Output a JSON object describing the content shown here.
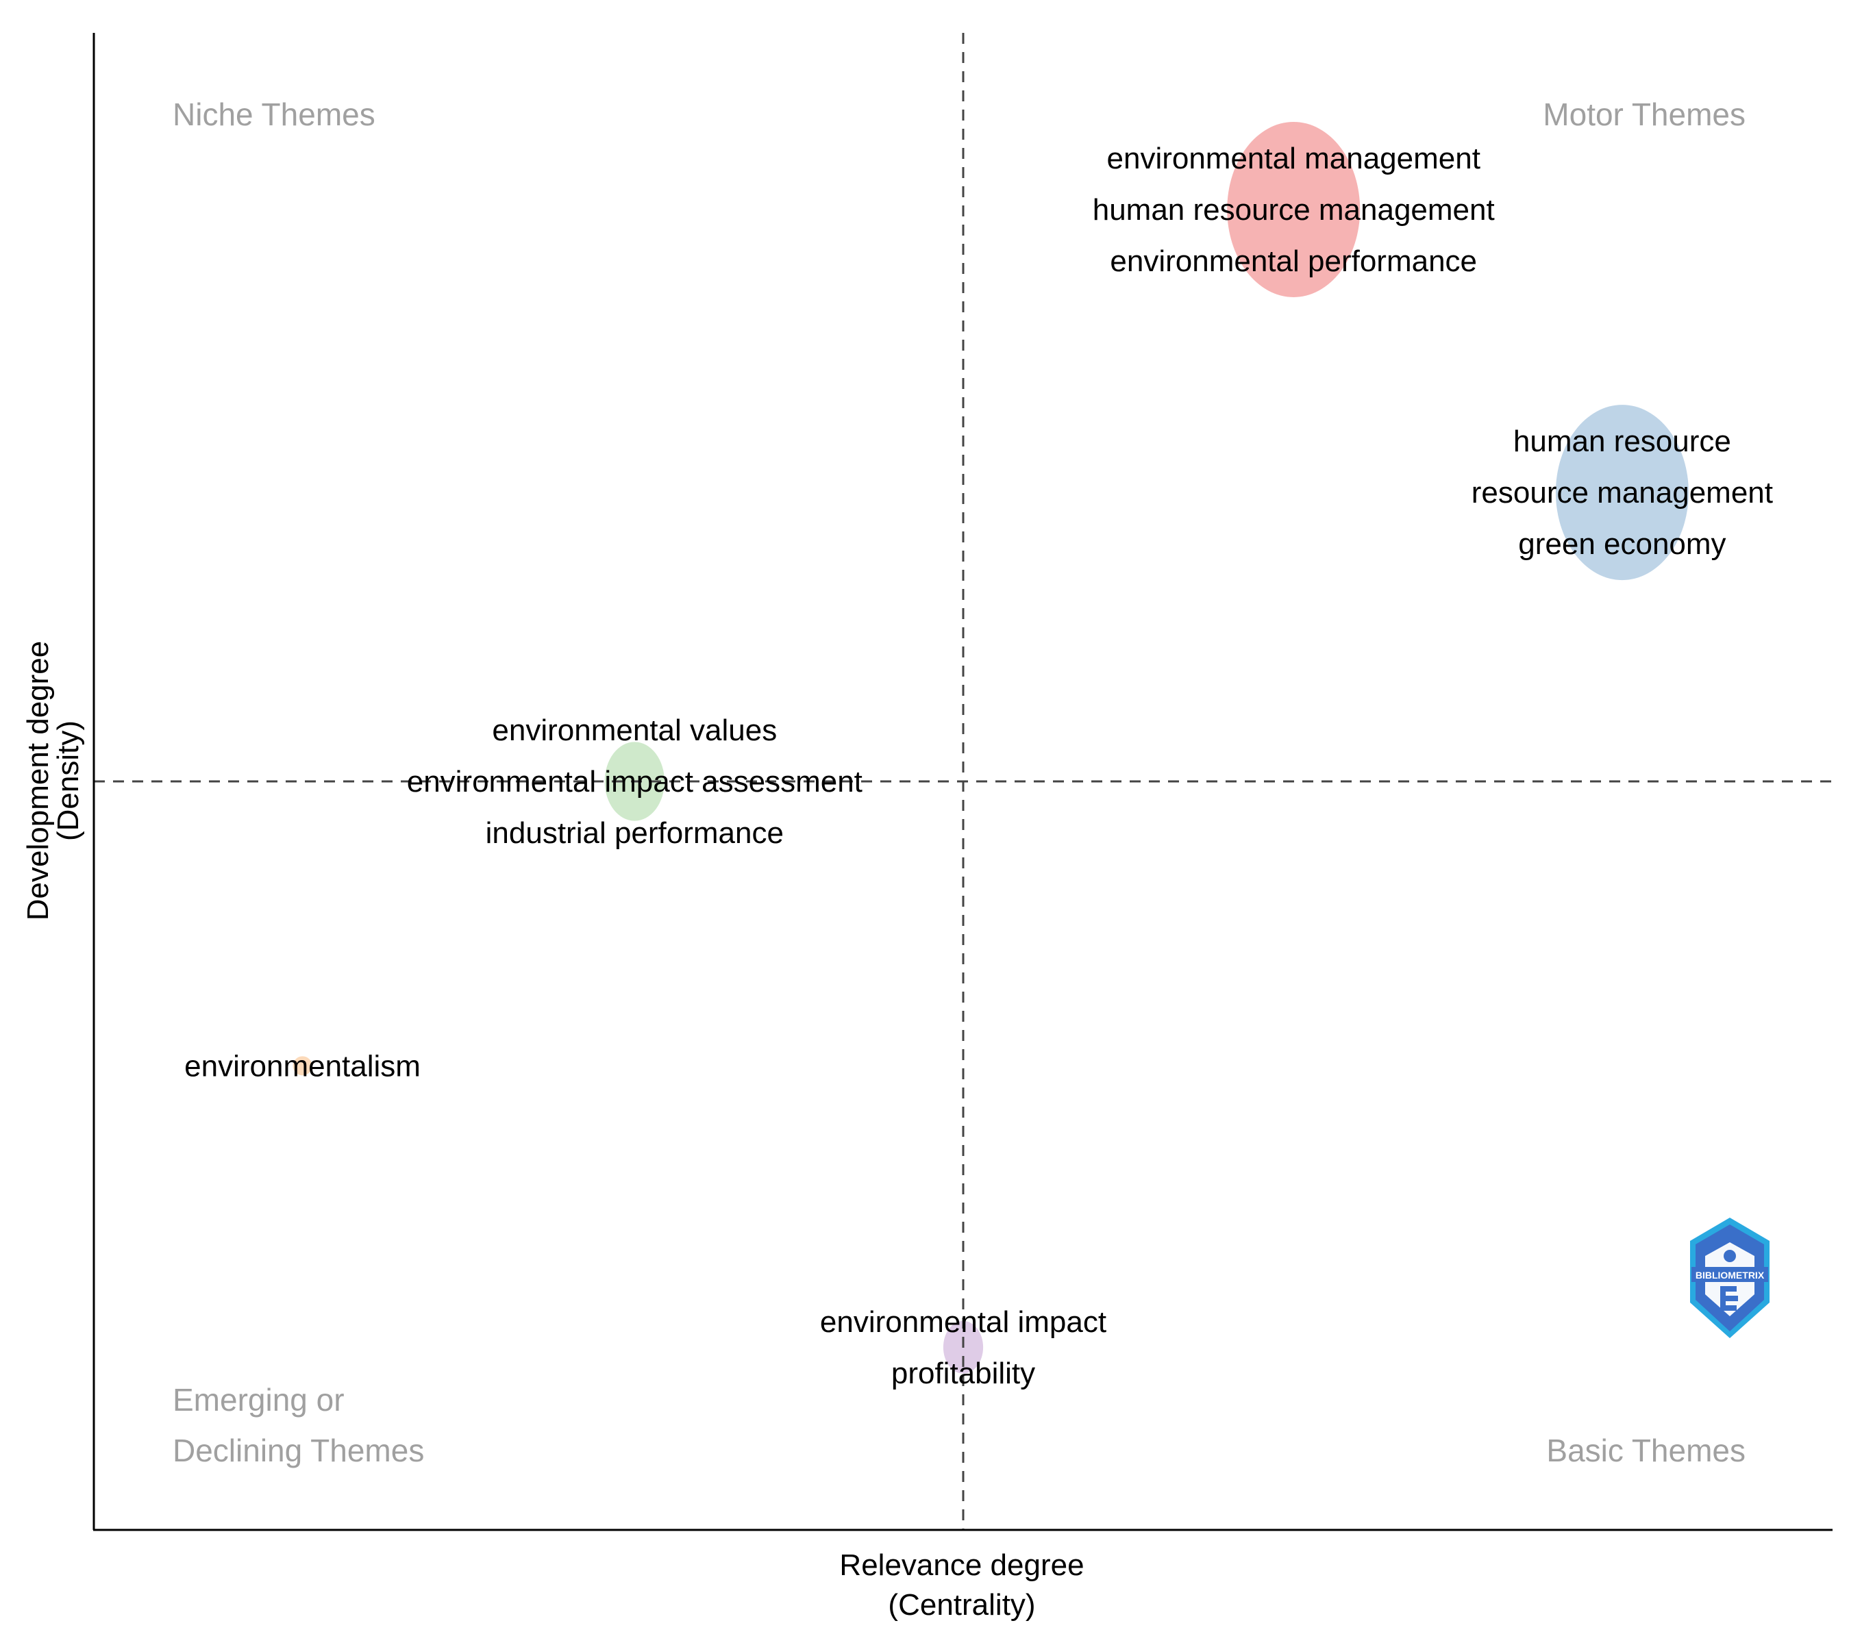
{
  "chart_data": {
    "type": "scatter",
    "title": "",
    "xlabel": [
      "Relevance degree",
      "(Centrality)"
    ],
    "ylabel": [
      "Development degree",
      "(Density)"
    ],
    "xlim": [
      0,
      1
    ],
    "ylim": [
      0,
      1
    ],
    "reference_x": 0.5,
    "reference_y": 0.5,
    "grid": false,
    "quadrant_labels": {
      "top_left": [
        "Niche Themes"
      ],
      "top_right": [
        "Motor Themes"
      ],
      "bottom_left": [
        "Emerging or",
        "Declining Themes"
      ],
      "bottom_right": [
        "Basic Themes"
      ]
    },
    "clusters": [
      {
        "labels": [
          "environmental management",
          "human resource management",
          "environmental performance"
        ],
        "x": 0.69,
        "y": 0.882,
        "size": 1.0,
        "color": "#F4A6A6"
      },
      {
        "labels": [
          "human resource",
          "resource management",
          "green economy"
        ],
        "x": 0.879,
        "y": 0.693,
        "size": 1.0,
        "color": "#B3CDE3"
      },
      {
        "labels": [
          "environmental values",
          "environmental impact assessment",
          "industrial performance"
        ],
        "x": 0.311,
        "y": 0.5,
        "size": 0.45,
        "color": "#C7E5C2"
      },
      {
        "labels": [
          "environmentalism"
        ],
        "x": 0.12,
        "y": 0.31,
        "size": 0.1,
        "color": "#FBD3AE"
      },
      {
        "labels": [
          "environmental impact",
          "profitability"
        ],
        "x": 0.5,
        "y": 0.122,
        "size": 0.3,
        "color": "#D9C3E3"
      }
    ],
    "logo_text": "BIBLIOMETRIX"
  },
  "colors": {
    "axis": "#000000",
    "reference_line": "#444444",
    "quadrant_text": "#a0a0a0",
    "logo_blue": "#3a6fc9",
    "logo_cyan": "#29a9e0"
  }
}
